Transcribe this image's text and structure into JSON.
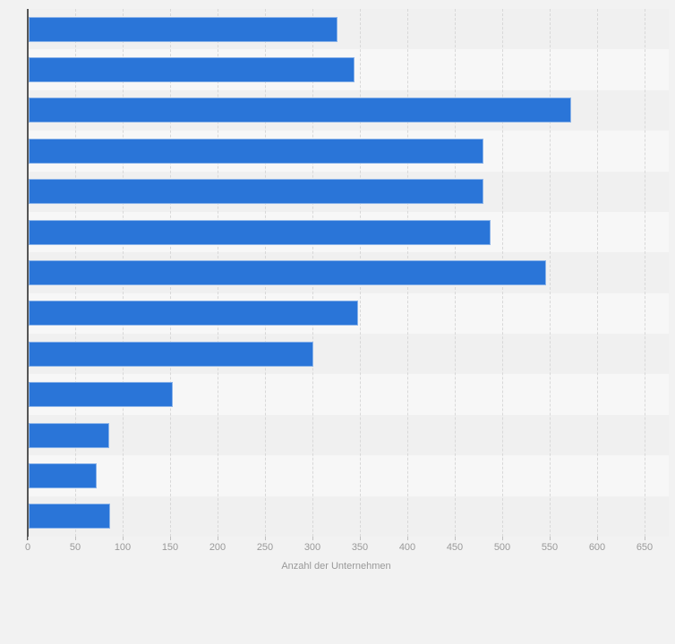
{
  "chart_data": {
    "type": "bar",
    "orientation": "horizontal",
    "categories": [
      "",
      "",
      "",
      "",
      "",
      "",
      "",
      "",
      "",
      "",
      "",
      "",
      ""
    ],
    "values": [
      325,
      343,
      572,
      479,
      479,
      487,
      545,
      347,
      300,
      152,
      85,
      72,
      86
    ],
    "xlabel": "Anzahl der Unternehmen",
    "ylabel": "",
    "xlim": [
      0,
      650
    ],
    "xticks": [
      0,
      50,
      100,
      150,
      200,
      250,
      300,
      350,
      400,
      450,
      500,
      550,
      600,
      650
    ],
    "grid": true,
    "legend": false,
    "bar_color": "#2a75d8",
    "band_colors": [
      "#f0f0f0",
      "#f7f7f7"
    ],
    "gridline_color": "#d8d8d8",
    "axis_line_color": "#565656",
    "tick_label_color": "#999999",
    "page_background": "#f2f2f2"
  }
}
